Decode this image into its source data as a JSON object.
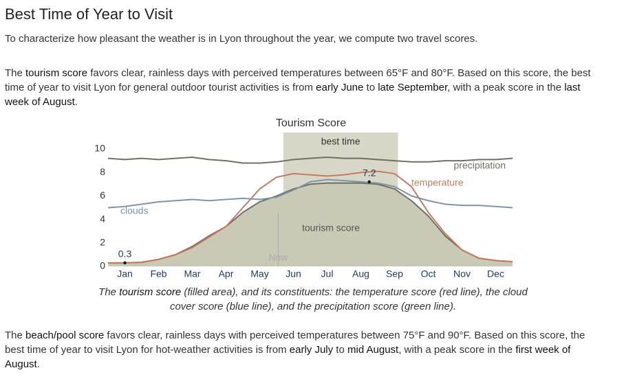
{
  "heading": "Best Time of Year to Visit",
  "paragraphs": [
    [
      "To characterize how pleasant the weather is in Lyon throughout the year, we compute two travel scores."
    ],
    [
      "The ",
      "tourism score",
      " favors clear, rainless days with perceived temperatures between 65°F and 80°F. Based on this score, the best time of year to visit Lyon for general outdoor tourist activities is from ",
      "early June",
      " to ",
      "late September",
      ", with a peak score in the ",
      "last week of August",
      "."
    ]
  ],
  "chart_data": {
    "type": "line",
    "title": "Tourism Score",
    "x": [
      0,
      0.5,
      1,
      1.5,
      2,
      2.5,
      3,
      3.5,
      4,
      4.5,
      5,
      5.5,
      6,
      6.5,
      7,
      7.5,
      8,
      8.5,
      9,
      9.5,
      10,
      10.5,
      11,
      11.5,
      12
    ],
    "xlim": [
      0,
      12
    ],
    "xticks": [
      {
        "value": 0.5,
        "label": "Jan"
      },
      {
        "value": 1.5,
        "label": "Feb"
      },
      {
        "value": 2.5,
        "label": "Mar"
      },
      {
        "value": 3.5,
        "label": "Apr"
      },
      {
        "value": 4.5,
        "label": "May"
      },
      {
        "value": 5.5,
        "label": "Jun"
      },
      {
        "value": 6.5,
        "label": "Jul"
      },
      {
        "value": 7.5,
        "label": "Aug"
      },
      {
        "value": 8.5,
        "label": "Sep"
      },
      {
        "value": 9.5,
        "label": "Oct"
      },
      {
        "value": 10.5,
        "label": "Nov"
      },
      {
        "value": 11.5,
        "label": "Dec"
      }
    ],
    "ylim": [
      0,
      10
    ],
    "yticks": [
      0,
      2,
      4,
      6,
      8,
      10
    ],
    "grid": false,
    "best_time": {
      "label": "best time",
      "range": [
        5.2,
        8.6
      ],
      "color": "#d7d7c7"
    },
    "now": {
      "label": "Now",
      "x": 5.05
    },
    "series": [
      {
        "name": "tourism score",
        "color": "#6e7062",
        "fill": "#c9c9b5",
        "values": [
          0.3,
          0.3,
          0.35,
          0.6,
          1.0,
          1.7,
          2.6,
          3.4,
          4.6,
          5.5,
          6.0,
          6.6,
          7.0,
          7.1,
          7.1,
          7.1,
          7.0,
          6.6,
          5.6,
          4.3,
          2.6,
          1.4,
          0.7,
          0.5,
          0.4
        ]
      },
      {
        "name": "temperature",
        "color": "#c47a62",
        "values": [
          0.3,
          0.3,
          0.35,
          0.6,
          1.0,
          1.6,
          2.5,
          3.4,
          5.0,
          6.6,
          7.6,
          7.9,
          7.8,
          7.7,
          7.8,
          8.0,
          8.1,
          7.9,
          6.8,
          4.6,
          2.8,
          1.4,
          0.7,
          0.5,
          0.4
        ]
      },
      {
        "name": "clouds",
        "color": "#7c95ad",
        "values": [
          5.0,
          5.1,
          5.3,
          5.5,
          5.6,
          5.7,
          5.6,
          5.7,
          5.8,
          5.7,
          5.9,
          6.5,
          7.2,
          7.4,
          7.3,
          7.2,
          7.1,
          6.8,
          6.0,
          5.6,
          5.3,
          5.2,
          5.2,
          5.1,
          5.0
        ]
      },
      {
        "name": "precipitation",
        "color": "#6e7062",
        "values": [
          9.2,
          9.1,
          9.2,
          9.1,
          9.2,
          9.3,
          9.1,
          9.0,
          8.8,
          8.8,
          8.9,
          9.1,
          9.2,
          9.3,
          9.2,
          9.2,
          9.1,
          9.0,
          8.9,
          8.9,
          9.0,
          9.0,
          9.1,
          9.1,
          9.2
        ]
      }
    ],
    "annotations": [
      {
        "label": "0.3",
        "x": 0.5,
        "y": 0.3
      },
      {
        "label": "7.2",
        "x": 7.75,
        "y": 7.2
      }
    ],
    "caption": [
      "The ",
      "tourism score",
      " (filled area), and its constituents: the temperature score (red line), the cloud cover score (blue line), and the precipitation score (green line)."
    ]
  },
  "footer_paragraph": [
    "The ",
    "beach/pool score",
    " favors clear, rainless days with perceived temperatures between 75°F and 90°F. Based on this score, the best time of year to visit Lyon for hot-weather activities is from ",
    "early July",
    " to ",
    "mid August",
    ", with a peak score in the ",
    "first week of August",
    "."
  ]
}
